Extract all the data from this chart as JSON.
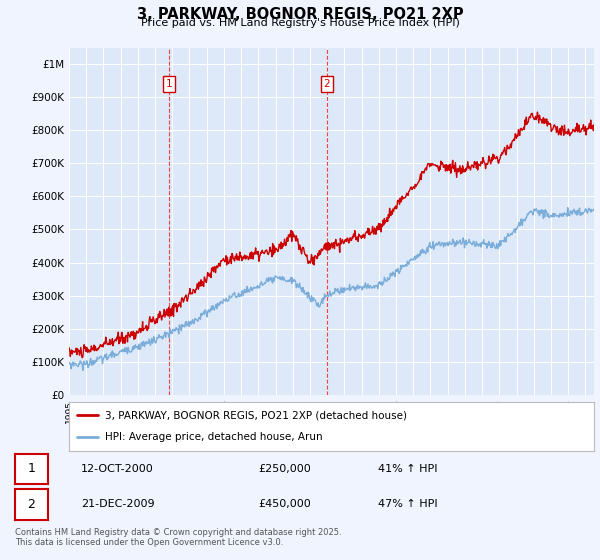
{
  "title": "3, PARKWAY, BOGNOR REGIS, PO21 2XP",
  "subtitle": "Price paid vs. HM Land Registry's House Price Index (HPI)",
  "ylim": [
    0,
    1050000
  ],
  "yticks": [
    0,
    100000,
    200000,
    300000,
    400000,
    500000,
    600000,
    700000,
    800000,
    900000,
    1000000
  ],
  "ytick_labels": [
    "£0",
    "£100K",
    "£200K",
    "£300K",
    "£400K",
    "£500K",
    "£600K",
    "£700K",
    "£800K",
    "£900K",
    "£1M"
  ],
  "background_color": "#f0f4ff",
  "plot_bg_color": "#dde8f8",
  "grid_color": "#ffffff",
  "red_line_color": "#cc0000",
  "blue_line_color": "#7aadd9",
  "vline_color": "#ee4444",
  "sale1_x": 2000.79,
  "sale1_y": 250000,
  "sale2_x": 2009.97,
  "sale2_y": 450000,
  "legend_red_label": "3, PARKWAY, BOGNOR REGIS, PO21 2XP (detached house)",
  "legend_blue_label": "HPI: Average price, detached house, Arun",
  "table_entries": [
    {
      "num": "1",
      "date": "12-OCT-2000",
      "price": "£250,000",
      "change": "41% ↑ HPI"
    },
    {
      "num": "2",
      "date": "21-DEC-2009",
      "price": "£450,000",
      "change": "47% ↑ HPI"
    }
  ],
  "footnote": "Contains HM Land Registry data © Crown copyright and database right 2025.\nThis data is licensed under the Open Government Licence v3.0.",
  "xmin": 1995,
  "xmax": 2025.5
}
